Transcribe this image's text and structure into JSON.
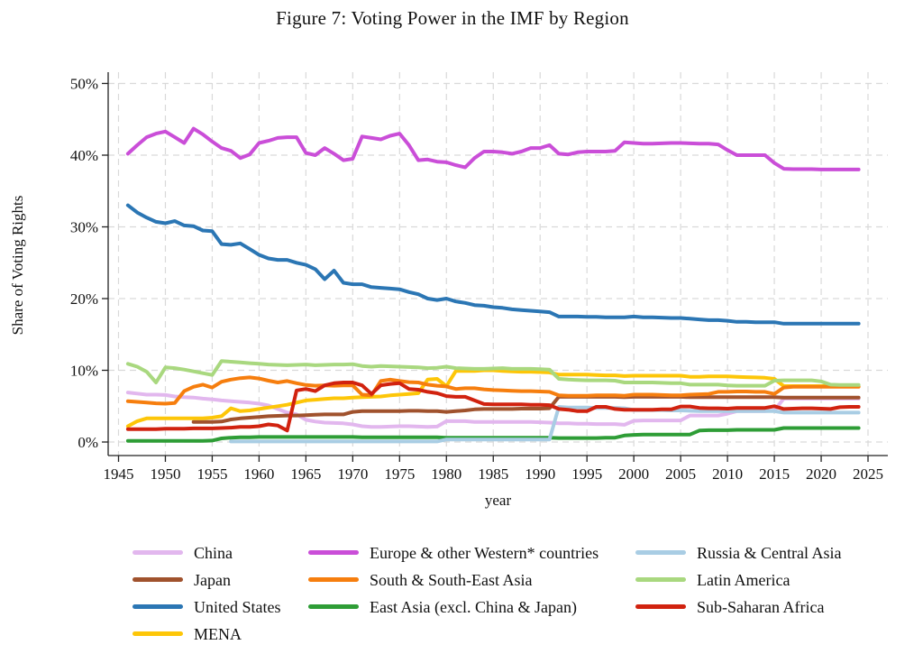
{
  "title": "Figure 7: Voting Power in the IMF by Region",
  "chart_data": {
    "type": "line",
    "title": "Figure 7: Voting Power in the IMF by Region",
    "xlabel": "year",
    "ylabel": "Share of Voting Rights",
    "xlim": [
      1945,
      2025
    ],
    "ylim": [
      0,
      50
    ],
    "x_ticks": [
      1945,
      1950,
      1955,
      1960,
      1965,
      1970,
      1975,
      1980,
      1985,
      1990,
      1995,
      2000,
      2005,
      2010,
      2015,
      2020,
      2025
    ],
    "y_ticks": [
      0,
      10,
      20,
      30,
      40,
      50
    ],
    "y_tick_suffix": "%",
    "grid": "dashed-both-axes",
    "gridline_color": "#d9d9d9",
    "legend_position": "bottom-3-columns",
    "series": [
      {
        "name": "China",
        "color": "#e2b7ee",
        "start_year": 1946,
        "values": [
          6.9,
          6.75,
          6.6,
          6.6,
          6.55,
          6.35,
          6.25,
          6.2,
          6.05,
          5.95,
          5.8,
          5.7,
          5.6,
          5.5,
          5.35,
          5.1,
          4.6,
          4.1,
          3.85,
          3.1,
          2.85,
          2.7,
          2.65,
          2.6,
          2.45,
          2.2,
          2.1,
          2.1,
          2.15,
          2.2,
          2.2,
          2.15,
          2.1,
          2.15,
          2.9,
          2.9,
          2.9,
          2.8,
          2.8,
          2.8,
          2.8,
          2.8,
          2.8,
          2.8,
          2.75,
          2.7,
          2.6,
          2.6,
          2.55,
          2.55,
          2.5,
          2.5,
          2.5,
          2.4,
          2.95,
          3.0,
          3.0,
          3.0,
          3.0,
          3.0,
          3.7,
          3.7,
          3.7,
          3.7,
          3.95,
          4.3,
          4.3,
          4.3,
          4.3,
          4.4,
          6.05,
          6.05,
          6.05,
          6.05,
          6.05,
          6.05,
          6.05,
          6.05,
          6.05
        ]
      },
      {
        "name": "Japan",
        "color": "#a0522d",
        "start_year": 1953,
        "values": [
          2.8,
          2.8,
          2.8,
          2.85,
          3.15,
          3.3,
          3.4,
          3.5,
          3.6,
          3.65,
          3.7,
          3.7,
          3.75,
          3.8,
          3.85,
          3.85,
          3.85,
          4.2,
          4.3,
          4.3,
          4.3,
          4.3,
          4.3,
          4.35,
          4.35,
          4.3,
          4.3,
          4.2,
          4.3,
          4.4,
          4.55,
          4.6,
          4.6,
          4.6,
          4.6,
          4.65,
          4.65,
          4.65,
          4.7,
          6.3,
          6.3,
          6.3,
          6.3,
          6.3,
          6.3,
          6.3,
          6.25,
          6.3,
          6.3,
          6.3,
          6.3,
          6.3,
          6.3,
          6.25,
          6.25,
          6.25,
          6.25,
          6.25,
          6.25,
          6.25,
          6.25,
          6.25,
          6.25,
          6.2,
          6.2,
          6.2,
          6.2,
          6.2,
          6.2,
          6.2,
          6.2,
          6.2
        ]
      },
      {
        "name": "United States",
        "color": "#2b76b4",
        "start_year": 1946,
        "values": [
          33.0,
          32.0,
          31.3,
          30.7,
          30.5,
          30.8,
          30.2,
          30.1,
          29.5,
          29.4,
          27.6,
          27.5,
          27.7,
          26.9,
          26.1,
          25.6,
          25.4,
          25.4,
          25.0,
          24.7,
          24.1,
          22.7,
          23.9,
          22.2,
          22.0,
          22.0,
          21.6,
          21.5,
          21.4,
          21.3,
          20.9,
          20.6,
          20.0,
          19.8,
          20.0,
          19.6,
          19.4,
          19.1,
          19.0,
          18.8,
          18.7,
          18.5,
          18.4,
          18.3,
          18.2,
          18.1,
          17.5,
          17.5,
          17.5,
          17.45,
          17.45,
          17.4,
          17.4,
          17.4,
          17.5,
          17.4,
          17.4,
          17.35,
          17.3,
          17.3,
          17.2,
          17.1,
          17.0,
          17.0,
          16.9,
          16.75,
          16.75,
          16.7,
          16.7,
          16.7,
          16.5,
          16.5,
          16.5,
          16.5,
          16.5,
          16.5,
          16.5,
          16.5,
          16.5
        ]
      },
      {
        "name": "MENA",
        "color": "#fdc608",
        "start_year": 1946,
        "values": [
          2.2,
          2.9,
          3.3,
          3.3,
          3.3,
          3.3,
          3.3,
          3.3,
          3.3,
          3.4,
          3.6,
          4.7,
          4.3,
          4.4,
          4.6,
          4.8,
          5.0,
          5.2,
          5.5,
          5.8,
          5.9,
          6.0,
          6.1,
          6.1,
          6.2,
          6.25,
          6.3,
          6.35,
          6.5,
          6.6,
          6.7,
          6.8,
          8.7,
          8.8,
          7.8,
          9.9,
          9.9,
          9.9,
          10.0,
          10.0,
          9.9,
          9.85,
          9.8,
          9.8,
          9.75,
          9.7,
          9.4,
          9.4,
          9.4,
          9.4,
          9.35,
          9.3,
          9.3,
          9.2,
          9.25,
          9.25,
          9.25,
          9.25,
          9.25,
          9.25,
          9.1,
          9.1,
          9.15,
          9.15,
          9.15,
          9.1,
          9.05,
          9.0,
          8.95,
          8.8,
          7.8,
          7.8,
          7.8,
          7.8,
          7.8,
          7.8,
          7.75,
          7.75,
          7.75
        ]
      },
      {
        "name": "Europe & other Western* countries",
        "color": "#ca4ed8",
        "start_year": 1946,
        "values": [
          40.2,
          41.4,
          42.5,
          43.0,
          43.3,
          42.5,
          41.7,
          43.7,
          42.9,
          41.9,
          41.0,
          40.6,
          39.6,
          40.1,
          41.7,
          42.0,
          42.4,
          42.5,
          42.5,
          40.3,
          40.0,
          41.0,
          40.2,
          39.3,
          39.5,
          42.6,
          42.4,
          42.2,
          42.7,
          43.0,
          41.4,
          39.3,
          39.4,
          39.1,
          39.0,
          38.6,
          38.3,
          39.6,
          40.5,
          40.5,
          40.4,
          40.2,
          40.5,
          41.0,
          41.0,
          41.4,
          40.2,
          40.1,
          40.4,
          40.5,
          40.5,
          40.5,
          40.6,
          41.8,
          41.7,
          41.6,
          41.6,
          41.65,
          41.7,
          41.7,
          41.65,
          41.6,
          41.6,
          41.5,
          40.7,
          40.0,
          40.0,
          40.0,
          40.0,
          38.9,
          38.1,
          38.05,
          38.05,
          38.05,
          38.0,
          38.0,
          38.0,
          38.0,
          38.0
        ]
      },
      {
        "name": "South & South-East Asia",
        "color": "#f67e0e",
        "start_year": 1946,
        "values": [
          5.7,
          5.6,
          5.5,
          5.4,
          5.35,
          5.45,
          7.1,
          7.7,
          8.0,
          7.6,
          8.4,
          8.7,
          8.9,
          9.0,
          8.85,
          8.55,
          8.3,
          8.5,
          8.2,
          7.95,
          7.85,
          7.9,
          7.85,
          7.9,
          7.9,
          6.6,
          6.5,
          8.5,
          8.7,
          8.5,
          8.35,
          8.3,
          8.0,
          7.85,
          7.75,
          7.4,
          7.5,
          7.5,
          7.35,
          7.25,
          7.2,
          7.15,
          7.1,
          7.1,
          7.05,
          7.0,
          6.5,
          6.45,
          6.45,
          6.45,
          6.5,
          6.5,
          6.5,
          6.45,
          6.6,
          6.6,
          6.6,
          6.55,
          6.5,
          6.5,
          6.6,
          6.65,
          6.7,
          7.0,
          7.0,
          7.05,
          7.05,
          7.0,
          7.0,
          6.7,
          7.6,
          7.7,
          7.7,
          7.7,
          7.7,
          7.7,
          7.7,
          7.7,
          7.7
        ]
      },
      {
        "name": "East Asia (excl. China & Japan)",
        "color": "#2e9d36",
        "start_year": 1946,
        "values": [
          0.15,
          0.15,
          0.15,
          0.15,
          0.15,
          0.15,
          0.15,
          0.15,
          0.15,
          0.2,
          0.5,
          0.6,
          0.65,
          0.65,
          0.7,
          0.7,
          0.7,
          0.7,
          0.7,
          0.7,
          0.7,
          0.7,
          0.7,
          0.7,
          0.7,
          0.65,
          0.65,
          0.65,
          0.65,
          0.65,
          0.65,
          0.65,
          0.65,
          0.65,
          0.6,
          0.6,
          0.6,
          0.6,
          0.6,
          0.6,
          0.6,
          0.6,
          0.6,
          0.6,
          0.6,
          0.6,
          0.55,
          0.55,
          0.55,
          0.55,
          0.55,
          0.6,
          0.6,
          0.9,
          1.0,
          1.05,
          1.05,
          1.05,
          1.05,
          1.05,
          1.05,
          1.6,
          1.65,
          1.65,
          1.65,
          1.7,
          1.7,
          1.7,
          1.7,
          1.7,
          1.95,
          1.95,
          1.95,
          1.95,
          1.95,
          1.95,
          1.95,
          1.95,
          1.95
        ]
      },
      {
        "name": "Russia & Central Asia",
        "color": "#a9cde4",
        "start_year": 1957,
        "values": [
          0.08,
          0.08,
          0.08,
          0.08,
          0.08,
          0.08,
          0.08,
          0.08,
          0.08,
          0.08,
          0.08,
          0.08,
          0.08,
          0.08,
          0.08,
          0.08,
          0.08,
          0.08,
          0.08,
          0.08,
          0.08,
          0.08,
          0.08,
          0.35,
          0.35,
          0.35,
          0.35,
          0.35,
          0.35,
          0.35,
          0.35,
          0.35,
          0.35,
          0.35,
          0.35,
          4.9,
          4.8,
          4.8,
          4.8,
          4.75,
          4.75,
          4.75,
          4.7,
          4.45,
          4.45,
          4.45,
          4.45,
          4.4,
          4.4,
          4.35,
          4.3,
          4.3,
          4.3,
          4.3,
          4.3,
          4.3,
          4.3,
          4.3,
          4.3,
          4.1,
          4.1,
          4.1,
          4.1,
          4.1,
          4.1,
          4.1,
          4.1,
          4.1
        ]
      },
      {
        "name": "Latin America",
        "color": "#a9d87f",
        "start_year": 1946,
        "values": [
          10.9,
          10.5,
          9.8,
          8.3,
          10.4,
          10.3,
          10.1,
          9.85,
          9.6,
          9.35,
          11.3,
          11.2,
          11.1,
          11.0,
          10.9,
          10.8,
          10.75,
          10.7,
          10.75,
          10.8,
          10.7,
          10.75,
          10.8,
          10.8,
          10.85,
          10.6,
          10.5,
          10.6,
          10.55,
          10.5,
          10.45,
          10.4,
          10.3,
          10.35,
          10.5,
          10.3,
          10.25,
          10.2,
          10.2,
          10.25,
          10.3,
          10.2,
          10.2,
          10.2,
          10.15,
          10.1,
          8.8,
          8.7,
          8.65,
          8.6,
          8.6,
          8.6,
          8.55,
          8.3,
          8.3,
          8.3,
          8.3,
          8.25,
          8.2,
          8.2,
          8.0,
          8.0,
          8.0,
          8.0,
          7.9,
          7.85,
          7.85,
          7.85,
          7.85,
          8.55,
          8.6,
          8.6,
          8.6,
          8.6,
          8.45,
          8.0,
          7.95,
          7.95,
          7.95
        ]
      },
      {
        "name": "Sub-Saharan Africa",
        "color": "#d1220f",
        "start_year": 1946,
        "values": [
          1.8,
          1.8,
          1.8,
          1.8,
          1.85,
          1.85,
          1.85,
          1.9,
          1.9,
          1.9,
          1.95,
          2.0,
          2.1,
          2.1,
          2.2,
          2.45,
          2.3,
          1.6,
          7.2,
          7.4,
          7.1,
          7.9,
          8.2,
          8.3,
          8.3,
          7.9,
          6.7,
          7.9,
          8.1,
          8.2,
          7.4,
          7.3,
          7.0,
          6.8,
          6.4,
          6.3,
          6.3,
          5.8,
          5.3,
          5.25,
          5.25,
          5.25,
          5.25,
          5.2,
          5.2,
          5.15,
          4.6,
          4.5,
          4.3,
          4.3,
          4.9,
          4.9,
          4.6,
          4.5,
          4.5,
          4.5,
          4.5,
          4.55,
          4.55,
          4.95,
          4.95,
          4.75,
          4.7,
          4.7,
          4.65,
          4.75,
          4.75,
          4.75,
          4.75,
          5.0,
          4.6,
          4.65,
          4.7,
          4.7,
          4.65,
          4.6,
          4.85,
          4.9,
          4.9
        ]
      }
    ]
  }
}
